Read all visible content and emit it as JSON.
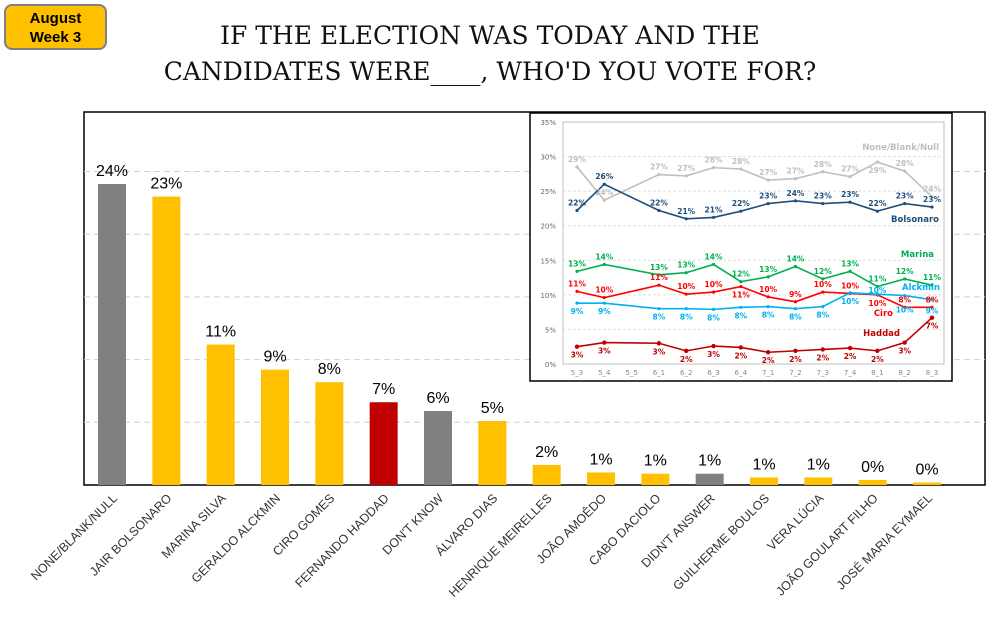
{
  "badge": {
    "line1": "August",
    "line2": "Week 3",
    "color": "#FFC000"
  },
  "title": {
    "line1": "IF THE ELECTION WAS TODAY AND THE",
    "line2": "CANDIDATES WERE____, WHO'D YOU VOTE FOR?"
  },
  "chart_data": [
    {
      "type": "bar",
      "categories": [
        "NONE/BLANK/NULL",
        "JAIR BOLSONARO",
        "MARINA SILVA",
        "GERALDO ALCKMIN",
        "CIRO GOMES",
        "FERNANDO HADDAD",
        "DON'T KNOW",
        "ÁLVARO DIAS",
        "HENRIQUE MEIRELLES",
        "JOÃO AMOÊDO",
        "CABO DACIOLO",
        "DIDN'T ANSWER",
        "GUILHERME BOULOS",
        "VERA LÚCIA",
        "JOÃO GOULART FILHO",
        "JOSÉ MARIA EYMAEL"
      ],
      "values": [
        24,
        23,
        11,
        9,
        8,
        7,
        6,
        5,
        2,
        1,
        1,
        1,
        1,
        1,
        0,
        0
      ],
      "value_labels": [
        "24%",
        "23%",
        "11%",
        "9%",
        "8%",
        "7%",
        "6%",
        "5%",
        "2%",
        "1%",
        "1%",
        "1%",
        "1%",
        "1%",
        "0%",
        "0%"
      ],
      "colors": [
        "#808080",
        "#FFC000",
        "#FFC000",
        "#FFC000",
        "#FFC000",
        "#C00000",
        "#808080",
        "#FFC000",
        "#FFC000",
        "#FFC000",
        "#FFC000",
        "#808080",
        "#FFC000",
        "#FFC000",
        "#FFC000",
        "#FFC000"
      ],
      "bar_heights_pct": [
        24.0,
        23.0,
        11.2,
        9.2,
        8.2,
        6.6,
        5.9,
        5.1,
        1.6,
        1.0,
        0.9,
        0.9,
        0.6,
        0.6,
        0.4,
        0.2
      ],
      "ylim": [
        0,
        30
      ],
      "grid": true
    },
    {
      "type": "line",
      "categories": [
        "5_3",
        "5_4",
        "5_5",
        "6_1",
        "6_2",
        "6_3",
        "6_4",
        "7_1",
        "7_2",
        "7_3",
        "7_4",
        "8_1",
        "8_2",
        "8_3"
      ],
      "yticks": [
        "0%",
        "5%",
        "10%",
        "15%",
        "20%",
        "25%",
        "30%",
        "35%"
      ],
      "ylim": [
        0,
        35
      ],
      "grid": true,
      "series": [
        {
          "name": "None/Blank/Null",
          "color": "#BFBFBF",
          "values": [
            28.5,
            23.7,
            null,
            27.4,
            27.2,
            28.4,
            28.2,
            26.6,
            26.8,
            27.8,
            27.1,
            29.2,
            27.9,
            24.2
          ],
          "labels": [
            "29%",
            "24%",
            "",
            "27%",
            "27%",
            "28%",
            "28%",
            "27%",
            "27%",
            "28%",
            "27%",
            "29%",
            "28%",
            "24%"
          ]
        },
        {
          "name": "Bolsonaro",
          "color": "#1F4E79",
          "values": [
            22.2,
            26.0,
            null,
            22.2,
            21.0,
            21.2,
            22.1,
            23.2,
            23.6,
            23.2,
            23.4,
            22.1,
            23.2,
            22.7
          ],
          "labels": [
            "22%",
            "26%",
            "",
            "22%",
            "21%",
            "21%",
            "22%",
            "23%",
            "24%",
            "23%",
            "23%",
            "22%",
            "23%",
            "23%"
          ]
        },
        {
          "name": "Marina",
          "color": "#00B050",
          "values": [
            13.4,
            14.4,
            null,
            12.9,
            13.2,
            14.4,
            11.9,
            12.6,
            14.1,
            12.3,
            13.4,
            11.2,
            12.3,
            11.4
          ],
          "labels": [
            "13%",
            "14%",
            "",
            "13%",
            "13%",
            "14%",
            "12%",
            "13%",
            "14%",
            "12%",
            "13%",
            "11%",
            "12%",
            "11%"
          ]
        },
        {
          "name": "Ciro",
          "color": "#FF0000",
          "values": [
            10.5,
            9.6,
            null,
            11.4,
            10.1,
            10.4,
            11.2,
            9.7,
            9.0,
            10.4,
            10.2,
            10.0,
            8.2,
            8.2
          ],
          "labels": [
            "11%",
            "10%",
            "",
            "11%",
            "10%",
            "10%",
            "11%",
            "10%",
            "9%",
            "10%",
            "10%",
            "10%",
            "8%",
            "8%"
          ]
        },
        {
          "name": "Alckmin",
          "color": "#00B0F0",
          "values": [
            8.8,
            8.8,
            null,
            8.0,
            8.0,
            7.9,
            8.2,
            8.3,
            8.0,
            8.3,
            10.3,
            10.1,
            9.9,
            9.3
          ],
          "labels": [
            "9%",
            "9%",
            "",
            "8%",
            "8%",
            "8%",
            "8%",
            "8%",
            "8%",
            "8%",
            "10%",
            "10%",
            "10%",
            "9%"
          ]
        },
        {
          "name": "Haddad",
          "color": "#C00000",
          "values": [
            2.5,
            3.1,
            null,
            3.0,
            1.9,
            2.6,
            2.4,
            1.7,
            1.9,
            2.1,
            2.3,
            1.9,
            3.1,
            6.7
          ],
          "labels": [
            "3%",
            "3%",
            "",
            "3%",
            "2%",
            "3%",
            "2%",
            "2%",
            "2%",
            "2%",
            "2%",
            "2%",
            "3%",
            "7%"
          ]
        }
      ]
    }
  ]
}
